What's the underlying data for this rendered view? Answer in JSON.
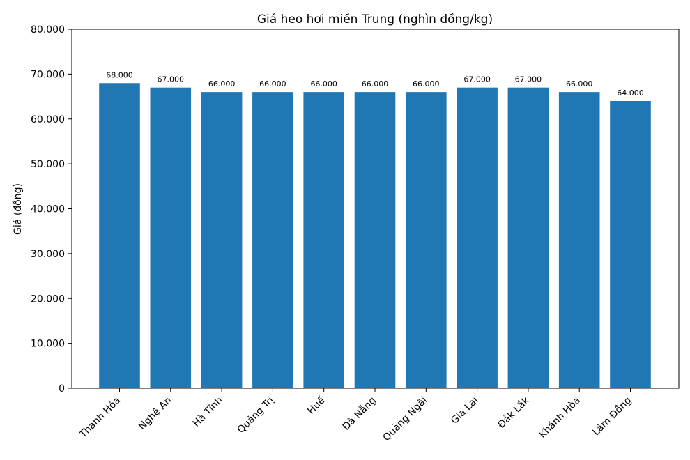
{
  "chart_data": {
    "type": "bar",
    "title": "Giá heo hơi miền Trung (nghìn đồng/kg)",
    "xlabel": "",
    "ylabel": "Giá (đồng)",
    "ylim": [
      0,
      80000
    ],
    "yticks": [
      0,
      10000,
      20000,
      30000,
      40000,
      50000,
      60000,
      70000,
      80000
    ],
    "ytick_labels": [
      "0",
      "10.000",
      "20.000",
      "30.000",
      "40.000",
      "50.000",
      "60.000",
      "70.000",
      "80.000"
    ],
    "categories": [
      "Thanh Hóa",
      "Nghệ An",
      "Hà Tĩnh",
      "Quảng Trị",
      "Huế",
      "Đà Nẵng",
      "Quảng Ngãi",
      "Gia Lai",
      "Đắk Lắk",
      "Khánh Hòa",
      "Lâm Đồng"
    ],
    "values": [
      68000,
      67000,
      66000,
      66000,
      66000,
      66000,
      66000,
      67000,
      67000,
      66000,
      64000
    ],
    "data_labels": [
      "68.000",
      "67.000",
      "66.000",
      "66.000",
      "66.000",
      "66.000",
      "66.000",
      "67.000",
      "67.000",
      "66.000",
      "64.000"
    ],
    "bar_color": "#1f77b4",
    "grid": false,
    "legend": "none"
  }
}
